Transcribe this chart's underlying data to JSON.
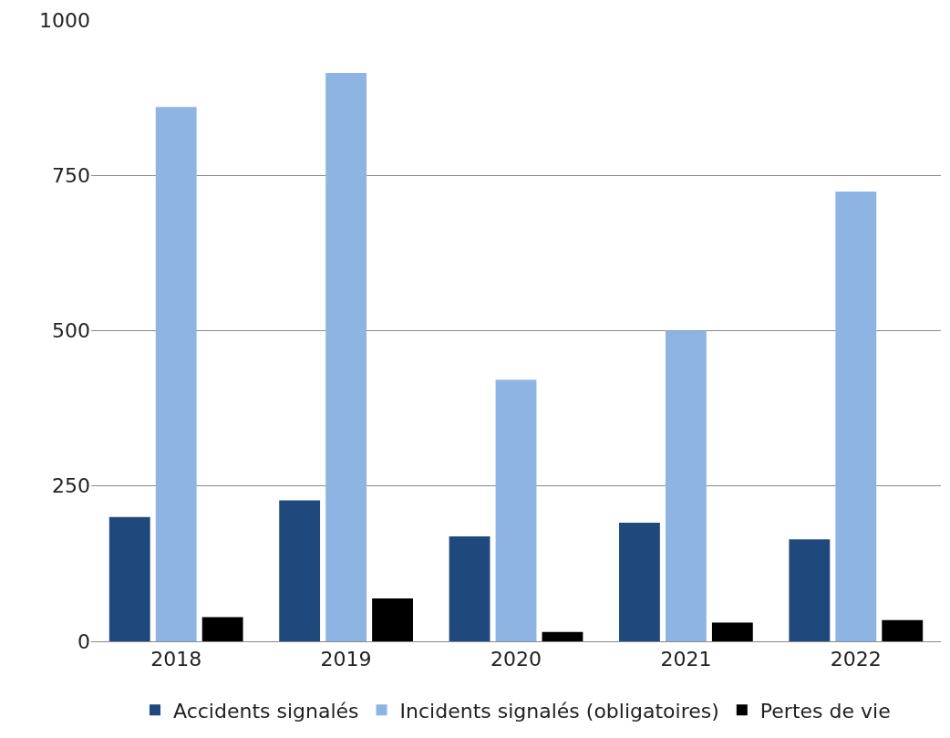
{
  "chart_data": {
    "type": "bar",
    "categories": [
      "2018",
      "2019",
      "2020",
      "2021",
      "2022"
    ],
    "series": [
      {
        "name": "Accidents signalés",
        "color": "#1f497d",
        "values": [
          200,
          227,
          169,
          191,
          164
        ]
      },
      {
        "name": "Incidents signalés (obligatoires)",
        "color": "#8eb4e3",
        "values": [
          860,
          915,
          421,
          500,
          724
        ]
      },
      {
        "name": "Pertes de vie",
        "color": "#000000",
        "values": [
          39,
          69,
          15,
          30,
          34
        ]
      }
    ],
    "ylim": [
      0,
      1000
    ],
    "yticks": [
      0,
      250,
      500,
      750,
      1000
    ],
    "grid": "y",
    "legend": "bottom"
  }
}
